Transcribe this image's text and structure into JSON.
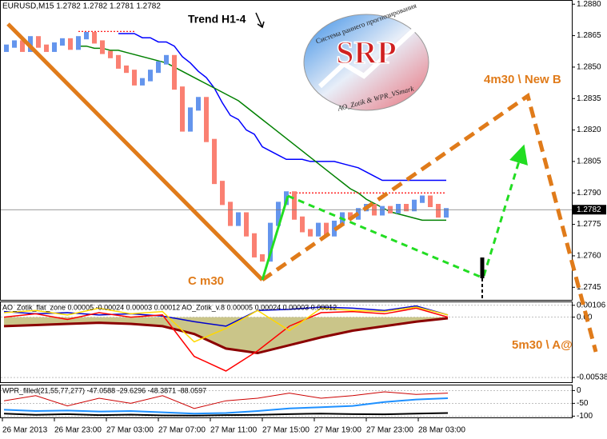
{
  "chart_data": [
    {
      "type": "candlestick",
      "title": "EURUSD,M15  1.2782 1.2782 1.2781 1.2782",
      "open": [
        1.2858,
        1.286,
        1.2862,
        1.2858,
        1.2864,
        1.286,
        1.2858,
        1.2861,
        1.2863,
        1.2859,
        1.2864,
        1.2866,
        1.2862,
        1.2857,
        1.2855,
        1.285,
        1.2848,
        1.2842,
        1.2844,
        1.2848,
        1.2852,
        1.2855,
        1.284,
        1.282,
        1.283,
        1.2835,
        1.2815,
        1.2795,
        1.2785,
        1.2775,
        1.278,
        1.277,
        1.276,
        1.2758,
        1.2775,
        1.2785,
        1.279,
        1.2778,
        1.2772,
        1.277,
        1.2775,
        1.277,
        1.2776,
        1.278,
        1.2778,
        1.2782,
        1.2784,
        1.278,
        1.2783,
        1.2781,
        1.2784,
        1.2782,
        1.2786,
        1.2788,
        1.2784,
        1.2779
      ],
      "close": [
        1.286,
        1.2862,
        1.2858,
        1.2864,
        1.286,
        1.2858,
        1.2861,
        1.2863,
        1.2859,
        1.2864,
        1.2866,
        1.2862,
        1.2857,
        1.2855,
        1.285,
        1.2848,
        1.2842,
        1.2844,
        1.2848,
        1.2852,
        1.2855,
        1.284,
        1.282,
        1.283,
        1.2835,
        1.2815,
        1.2795,
        1.2785,
        1.2775,
        1.278,
        1.277,
        1.276,
        1.2758,
        1.2775,
        1.2785,
        1.279,
        1.2778,
        1.2772,
        1.277,
        1.2775,
        1.277,
        1.2776,
        1.278,
        1.2778,
        1.2782,
        1.2784,
        1.278,
        1.2783,
        1.2781,
        1.2784,
        1.2782,
        1.2786,
        1.2788,
        1.2784,
        1.2779,
        1.2782
      ],
      "up_color": "#6495ed",
      "down_color": "#fa8072",
      "lines": [
        {
          "color": "#0000ff",
          "style": "solid",
          "values": [
            null,
            null,
            null,
            null,
            null,
            null,
            null,
            null,
            null,
            null,
            null,
            null,
            null,
            null,
            1.2866,
            1.2866,
            1.2866,
            1.2864,
            1.2864,
            1.2862,
            1.2862,
            1.286,
            1.2855,
            1.2852,
            1.2848,
            1.2845,
            1.284,
            1.2833,
            1.2827,
            1.2825,
            1.282,
            1.2818,
            1.2812,
            1.281,
            1.2808,
            1.2806,
            1.2806,
            1.2806,
            1.2805,
            1.2805,
            1.2805,
            1.2805,
            1.2804,
            1.2803,
            1.2802,
            1.28,
            1.2798,
            1.2796,
            1.2796,
            1.2796,
            1.2796,
            1.2796,
            1.2796,
            1.2796,
            1.2796,
            1.2796
          ]
        },
        {
          "color": "#008000",
          "style": "solid",
          "values": [
            null,
            null,
            null,
            null,
            null,
            null,
            null,
            null,
            null,
            1.286,
            1.286,
            1.2859,
            1.2859,
            1.2858,
            1.2858,
            1.2857,
            1.2856,
            1.2855,
            1.2854,
            1.2853,
            1.2852,
            1.285,
            1.2848,
            1.2846,
            1.2844,
            1.2842,
            1.284,
            1.2838,
            1.2836,
            1.2834,
            1.2831,
            1.2828,
            1.2825,
            1.2822,
            1.2819,
            1.2816,
            1.2813,
            1.281,
            1.2807,
            1.2804,
            1.2801,
            1.2798,
            1.2795,
            1.2792,
            1.279,
            1.2787,
            1.2785,
            1.2783,
            1.2781,
            1.278,
            1.2779,
            1.2778,
            1.2777,
            1.2777,
            1.2777,
            1.2777
          ]
        },
        {
          "color": "#ff0000",
          "style": "dotted",
          "values": [
            null,
            null,
            null,
            null,
            null,
            null,
            null,
            null,
            null,
            1.2867,
            1.2867,
            1.2867,
            1.2867,
            1.2867,
            1.2867,
            1.2867,
            1.2867,
            null,
            null,
            null,
            null,
            null,
            null,
            null,
            null,
            null,
            null,
            null,
            null,
            null,
            null,
            null,
            null,
            null,
            null,
            null,
            null,
            null,
            null,
            null,
            null,
            null,
            null,
            null,
            null,
            null,
            null,
            null,
            null,
            null,
            null,
            null,
            null,
            null,
            null,
            null
          ]
        },
        {
          "color": "#ff0000",
          "style": "dotted",
          "values": [
            null,
            null,
            null,
            null,
            null,
            null,
            null,
            null,
            null,
            null,
            null,
            null,
            null,
            null,
            null,
            null,
            null,
            null,
            null,
            null,
            null,
            null,
            null,
            null,
            null,
            null,
            null,
            null,
            null,
            null,
            null,
            null,
            null,
            null,
            null,
            1.279,
            1.279,
            1.279,
            1.279,
            1.279,
            1.279,
            1.279,
            1.279,
            1.279,
            1.279,
            1.279,
            1.279,
            1.279,
            1.279,
            1.279,
            1.279,
            1.279,
            1.279,
            1.279,
            1.279,
            1.279
          ]
        }
      ],
      "current_price": 1.2782,
      "ylim": [
        1.2739,
        1.2882
      ],
      "yticks": [
        {
          "value": 1.288,
          "label": "1.2880"
        },
        1.2865,
        {
          "value": 1.285,
          "label": "1.2850"
        },
        1.2835,
        {
          "value": 1.282,
          "label": "1.2820"
        },
        1.2805,
        {
          "value": 1.279,
          "label": "1.2790"
        },
        1.2775,
        {
          "value": 1.276,
          "label": "1.2760"
        },
        1.2745
      ],
      "annotations": [
        "Trend H1-4",
        "4m30 \\ New B",
        "C m30",
        "5m30 \\ A@"
      ],
      "logo": {
        "title": "SRP",
        "subtitle": "Система раннего прогнозирования",
        "footer": "AO_Zotik & WPR_VSmark"
      }
    },
    {
      "type": "line",
      "title": "AO_Zotik_flat_zone 0.00005 -0.00024 0.00003 0.00012  AO_Zotik_v.8 0.00005 0.00024 0.00003 0.00012",
      "ylim": [
        -0.0058,
        0.0014
      ],
      "yticks": [
        0.00106,
        {
          "value": 0,
          "label": "0.00"
        },
        -0.00538
      ],
      "series": [
        {
          "color": "#8b0000",
          "width": 3,
          "fill": "#bdb76b",
          "values": [
            -0.0008,
            -0.0007,
            -0.0006,
            -0.0005,
            -0.0006,
            -0.0008,
            -0.0015,
            -0.0028,
            -0.0032,
            -0.0025,
            -0.0018,
            -0.0012,
            -0.0008,
            -0.0004,
            -0.0001
          ]
        },
        {
          "color": "#0000cd",
          "width": 1.5,
          "values": [
            0.0005,
            0.0003,
            0.0004,
            0.0002,
            0.0003,
            0.0001,
            -0.0004,
            -0.0008,
            0.0006,
            0.0007,
            0.0009,
            0.0008,
            0.0006,
            0.001,
            0.0002
          ]
        },
        {
          "color": "#ff0000",
          "width": 1.5,
          "values": [
            0.0,
            0.0003,
            -0.0002,
            0.0004,
            0.0,
            0.0002,
            -0.0035,
            -0.0048,
            -0.003,
            -0.0008,
            0.0004,
            0.0005,
            0.0003,
            0.0008,
            0.0
          ]
        },
        {
          "color": "#ffd700",
          "width": 1.5,
          "values": [
            0.0004,
            0.0006,
            0.0002,
            0.0008,
            0.0003,
            0.0005,
            -0.0022,
            -0.001,
            0.0006,
            -0.0012,
            0.0008,
            0.0006,
            0.0005,
            0.0009,
            0.0002
          ]
        }
      ]
    },
    {
      "type": "line",
      "title": "WPR_filled(21,55,77,277) -47.0588 -29.6296 -48.3871 -88.0597",
      "ylim": [
        -105,
        20
      ],
      "yticks": [
        0,
        -50,
        -100
      ],
      "series": [
        {
          "color": "#000000",
          "width": 2,
          "values": [
            -90,
            -95,
            -92,
            -96,
            -94,
            -97,
            -98,
            -96,
            -95,
            -92,
            -90,
            -92,
            -93,
            -90,
            -88
          ]
        },
        {
          "color": "#1e90ff",
          "width": 2,
          "values": [
            -75,
            -80,
            -78,
            -82,
            -80,
            -85,
            -90,
            -88,
            -80,
            -70,
            -65,
            -60,
            -45,
            -35,
            -30
          ]
        },
        {
          "color": "#cc0000",
          "width": 1,
          "values": [
            -40,
            -20,
            -60,
            -30,
            -50,
            -20,
            -70,
            -40,
            -30,
            -10,
            -30,
            -20,
            -5,
            -15,
            -10
          ]
        }
      ]
    }
  ],
  "time_axis": [
    "26 Mar 2013",
    "26 Mar 23:00",
    "27 Mar 03:00",
    "27 Mar 07:00",
    "27 Mar 11:00",
    "27 Mar 15:00",
    "27 Mar 19:00",
    "27 Mar 23:00",
    "28 Mar 03:00"
  ]
}
